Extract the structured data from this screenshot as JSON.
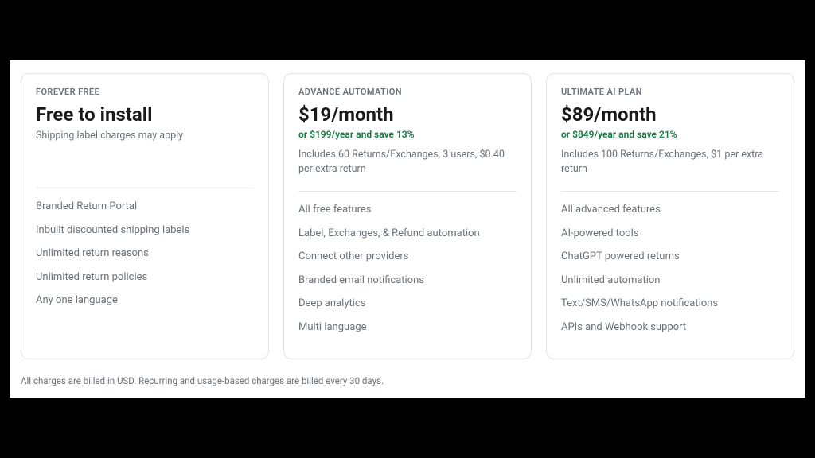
{
  "colors": {
    "page_bg": "#000000",
    "panel_bg": "#ffffff",
    "card_border": "#e3e3e3",
    "divider": "#e6e6e6",
    "muted_text": "#6b7177",
    "heading_text": "#1a1a1a",
    "accent_green": "#0f7b3f"
  },
  "cards": [
    {
      "tier": "FOREVER FREE",
      "price": "Free to install",
      "annual": "",
      "subnote": "Shipping label charges may apply",
      "features": [
        "Branded Return Portal",
        "Inbuilt discounted shipping labels",
        "Unlimited return reasons",
        "Unlimited return policies",
        "Any one language"
      ]
    },
    {
      "tier": "ADVANCE AUTOMATION",
      "price": "$19/month",
      "annual": "or $199/year and save 13%",
      "subnote": "Includes 60 Returns/Exchanges, 3 users, $0.40 per extra return",
      "features": [
        "All free features",
        "Label, Exchanges, & Refund automation",
        "Connect other providers",
        "Branded email notifications",
        "Deep analytics",
        "Multi language"
      ]
    },
    {
      "tier": "ULTIMATE AI PLAN",
      "price": "$89/month",
      "annual": "or $849/year and save 21%",
      "subnote": "Includes 100 Returns/Exchanges, $1 per extra return",
      "features": [
        "All advanced features",
        "AI-powered tools",
        "ChatGPT powered returns",
        "Unlimited automation",
        "Text/SMS/WhatsApp notifications",
        "APIs and Webhook support"
      ]
    }
  ],
  "footnote": "All charges are billed in USD. Recurring and usage-based charges are billed every 30 days."
}
